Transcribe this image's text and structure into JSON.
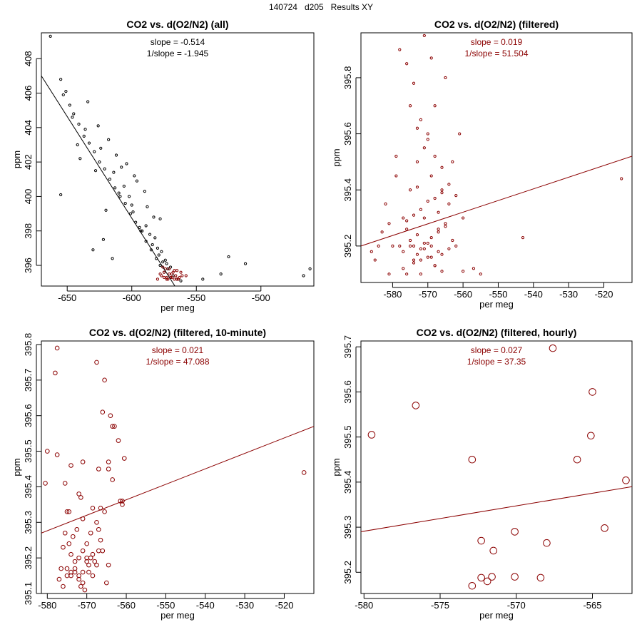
{
  "page_title": "140724   d205   Results XY",
  "chart_data": [
    {
      "type": "scatter",
      "title": "CO2 vs. d(O2/N2) (all)",
      "xlabel": "per meg",
      "ylabel": "ppm",
      "xlim": [
        -670,
        -459
      ],
      "ylim": [
        394.8,
        409.5
      ],
      "xticks": [
        -650,
        -600,
        -550,
        -500
      ],
      "yticks": [
        396,
        398,
        400,
        402,
        404,
        406,
        408
      ],
      "annotations": [
        "slope = -0.514",
        "1/slope = -1.945"
      ],
      "fit_line": {
        "slope": -0.514,
        "x": [
          -670,
          -560
        ],
        "color": "#000000"
      },
      "series": [
        {
          "name": "all",
          "color": "#000000",
          "x": [
            -663,
            -655,
            -651,
            -648,
            -645,
            -641,
            -637,
            -633,
            -629,
            -625,
            -621,
            -617,
            -613,
            -609,
            -605,
            -601,
            -597,
            -593,
            -589,
            -585,
            -581,
            -578,
            -575,
            -655,
            -602,
            -620,
            -578,
            -525,
            -512,
            -467,
            -462,
            -545,
            -531,
            -622,
            -630,
            -615,
            -642,
            -608,
            -598,
            -588,
            -583,
            -590,
            -596,
            -604,
            -612,
            -618,
            -626,
            -634,
            -600,
            -594,
            -586,
            -580,
            -576,
            -572,
            -568,
            -565,
            -562,
            -570,
            -574,
            -579,
            -584,
            -592,
            -606,
            -614,
            -624,
            -636,
            -646,
            -653,
            -640,
            -628,
            -610,
            -599,
            -589,
            -582,
            -577,
            -573
          ],
          "y": [
            409.3,
            406.8,
            406.1,
            405.3,
            404.8,
            404.2,
            403.5,
            403.1,
            402.6,
            402.0,
            401.6,
            401.0,
            400.5,
            400.0,
            399.6,
            399.0,
            398.5,
            398.0,
            397.4,
            396.9,
            396.4,
            396.0,
            395.6,
            400.1,
            400.0,
            399.2,
            398.7,
            396.5,
            396.1,
            395.4,
            395.8,
            395.2,
            395.5,
            397.5,
            396.9,
            396.4,
            403.0,
            401.7,
            401.2,
            399.4,
            398.8,
            400.3,
            400.9,
            401.9,
            402.4,
            403.3,
            404.1,
            405.5,
            399.5,
            398.2,
            397.8,
            397.0,
            396.2,
            395.8,
            395.4,
            395.2,
            395.1,
            395.9,
            396.3,
            396.6,
            397.2,
            398.0,
            400.6,
            401.4,
            402.8,
            403.9,
            404.6,
            405.9,
            402.2,
            401.5,
            400.2,
            399.1,
            398.3,
            397.6,
            396.8,
            396.1
          ]
        },
        {
          "name": "filtered",
          "color": "#8b0000",
          "x": [
            -580,
            -577,
            -575,
            -573,
            -571,
            -569,
            -567,
            -565,
            -563,
            -561,
            -576,
            -572,
            -568,
            -564,
            -578,
            -574,
            -570,
            -566,
            -562,
            -573,
            -571,
            -569,
            -567,
            -575,
            -565,
            -558
          ],
          "y": [
            395.2,
            395.4,
            395.6,
            395.3,
            395.8,
            395.5,
            395.2,
            395.7,
            395.3,
            395.4,
            395.9,
            395.2,
            395.6,
            395.2,
            395.5,
            395.8,
            395.3,
            395.4,
            395.6,
            395.2,
            395.5,
            395.3,
            395.7,
            395.3,
            395.2,
            395.4
          ]
        }
      ]
    },
    {
      "type": "scatter",
      "title": "CO2 vs. d(O2/N2) (filtered)",
      "xlabel": "per meg",
      "ylabel": "ppm",
      "xlim": [
        -589,
        -512
      ],
      "ylim": [
        395.07,
        395.96
      ],
      "xticks": [
        -580,
        -570,
        -560,
        -550,
        -540,
        -530,
        -520
      ],
      "yticks": [
        395.2,
        395.4,
        395.6,
        395.8
      ],
      "annotations": [
        "slope = 0.019",
        "1/slope = 51.504"
      ],
      "fit_line": {
        "slope": 0.019,
        "x": [
          -589,
          -512
        ],
        "y": [
          395.2,
          395.52
        ],
        "color": "#8b0000"
      },
      "series": [
        {
          "name": "filtered",
          "color": "#8b0000",
          "x": [
            -578,
            -577,
            -576,
            -575,
            -574,
            -573,
            -572,
            -571,
            -570,
            -569,
            -568,
            -567,
            -566,
            -565,
            -564,
            -563,
            -562,
            -561,
            -560,
            -579,
            -580,
            -581,
            -582,
            -583,
            -584,
            -585,
            -586,
            -576,
            -574,
            -572,
            -570,
            -568,
            -566,
            -564,
            -562,
            -578,
            -575,
            -573,
            -571,
            -569,
            -567,
            -565,
            -563,
            -577,
            -574,
            -572,
            -570,
            -568,
            -566,
            -564,
            -575,
            -573,
            -571,
            -569,
            -567,
            -565,
            -576,
            -574,
            -572,
            -570,
            -568,
            -566,
            -573,
            -571,
            -569,
            -567,
            -555,
            -557,
            -543,
            -515,
            -560,
            -579,
            -581,
            -571,
            -569,
            -573,
            -572,
            -570,
            -574,
            -568,
            -566,
            -576,
            -577,
            -575
          ],
          "y": [
            395.2,
            395.3,
            395.1,
            395.4,
            395.2,
            395.5,
            395.15,
            395.3,
            395.6,
            395.2,
            395.7,
            395.25,
            395.4,
            395.8,
            395.35,
            395.5,
            395.2,
            395.6,
            395.3,
            395.45,
            395.2,
            395.1,
            395.35,
            395.25,
            395.2,
            395.15,
            395.18,
            395.85,
            395.78,
            395.65,
            395.58,
            395.52,
            395.48,
            395.42,
            395.38,
            395.9,
            395.7,
            395.62,
            395.55,
            395.45,
            395.32,
            395.28,
            395.22,
            395.12,
            395.14,
            395.1,
            395.16,
            395.13,
            395.17,
            395.19,
            395.22,
            395.24,
            395.21,
            395.23,
            395.26,
            395.27,
            395.29,
            395.31,
            395.33,
            395.36,
            395.37,
            395.39,
            395.17,
            395.19,
            395.16,
            395.18,
            395.1,
            395.12,
            395.23,
            395.44,
            395.11,
            395.52,
            395.28,
            395.95,
            395.87,
            395.41,
            395.19,
            395.21,
            395.15,
            395.13,
            395.11,
            395.26,
            395.18,
            395.2
          ]
        }
      ]
    },
    {
      "type": "scatter",
      "title": "CO2 vs. d(O2/N2) (filtered, 10-minute)",
      "xlabel": "per meg",
      "ylabel": "ppm",
      "xlim": [
        -581.5,
        -512.5
      ],
      "ylim": [
        395.1,
        395.81
      ],
      "xticks": [
        -580,
        -570,
        -560,
        -550,
        -540,
        -530,
        -520
      ],
      "yticks": [
        395.1,
        395.2,
        395.3,
        395.4,
        395.5,
        395.6,
        395.7,
        395.8
      ],
      "annotations": [
        "slope = 0.021",
        "1/slope = 47.088"
      ],
      "fit_line": {
        "slope": 0.021,
        "x": [
          -581.5,
          -512.5
        ],
        "y": [
          395.27,
          395.57
        ],
        "color": "#8b0000"
      },
      "series": [
        {
          "name": "10-minute",
          "color": "#8b0000",
          "x": [
            -577.5,
            -578,
            -580,
            -577.5,
            -580.5,
            -575.5,
            -574,
            -575,
            -574.5,
            -572,
            -571.5,
            -571,
            -567.5,
            -567,
            -566,
            -565.5,
            -564.5,
            -564,
            -563.5,
            -563,
            -562,
            -561,
            -560.5,
            -563.5,
            -564.5,
            -565.5,
            -566.5,
            -567.5,
            -568.5,
            -571,
            -572.5,
            -573.5,
            -574.5,
            -575.5,
            -576,
            -576.5,
            -574,
            -573,
            -572,
            -571,
            -570,
            -569.5,
            -569,
            -568.5,
            -568,
            -567.5,
            -567,
            -566.5,
            -570,
            -571,
            -572,
            -573,
            -574,
            -575,
            -576,
            -577,
            -571.5,
            -570.5,
            -569.5,
            -568.5,
            -570,
            -572,
            -573,
            -574,
            -575,
            -571,
            -569,
            -567,
            -565,
            -566,
            -564.5,
            -561.5,
            -561,
            -515
          ],
          "y": [
            395.79,
            395.72,
            395.5,
            395.49,
            395.41,
            395.41,
            395.46,
            395.33,
            395.33,
            395.38,
            395.37,
            395.47,
            395.75,
            395.45,
            395.61,
            395.7,
            395.45,
            395.6,
            395.57,
            395.57,
            395.53,
            395.36,
            395.48,
            395.42,
            395.47,
            395.33,
            395.34,
            395.3,
            395.34,
            395.31,
            395.28,
            395.26,
            395.24,
            395.27,
            395.23,
            395.17,
            395.21,
            395.19,
            395.2,
            395.22,
            395.24,
            395.18,
            395.2,
            395.21,
            395.19,
            395.18,
            395.28,
            395.25,
            395.2,
            395.16,
            395.15,
            395.17,
            395.16,
            395.15,
            395.12,
            395.14,
            395.12,
            395.11,
            395.16,
            395.15,
            395.19,
            395.14,
            395.16,
            395.15,
            395.17,
            395.13,
            395.27,
            395.22,
            395.13,
            395.22,
            395.18,
            395.36,
            395.35,
            395.44
          ]
        }
      ]
    },
    {
      "type": "scatter",
      "title": "CO2 vs. d(O2/N2) (filtered, hourly)",
      "xlabel": "per meg",
      "ylabel": "ppm",
      "xlim": [
        -580.2,
        -562.4
      ],
      "ylim": [
        395.153,
        395.713
      ],
      "xticks": [
        -580,
        -575,
        -570,
        -565
      ],
      "yticks": [
        395.2,
        395.3,
        395.4,
        395.5,
        395.6,
        395.7
      ],
      "annotations": [
        "slope = 0.027",
        "1/slope = 37.35"
      ],
      "fit_line": {
        "slope": 0.027,
        "x": [
          -580.2,
          -562.4
        ],
        "y": [
          395.29,
          395.39
        ],
        "color": "#8b0000"
      },
      "series": [
        {
          "name": "hourly",
          "color": "#8b0000",
          "x": [
            -579.5,
            -576.6,
            -572.9,
            -572.3,
            -571.5,
            -572.3,
            -570.1,
            -570.1,
            -571.9,
            -571.6,
            -572.9,
            -568.4,
            -568.0,
            -567.6,
            -566.0,
            -565.1,
            -565.0,
            -564.2,
            -562.8
          ],
          "y": [
            395.505,
            395.57,
            395.45,
            395.27,
            395.248,
            395.188,
            395.19,
            395.29,
            395.18,
            395.19,
            395.17,
            395.188,
            395.265,
            395.697,
            395.45,
            395.503,
            395.6,
            395.298,
            395.404
          ]
        }
      ]
    }
  ]
}
